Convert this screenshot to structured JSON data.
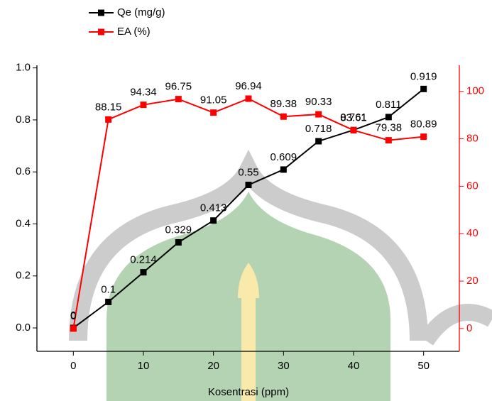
{
  "chart_data": {
    "type": "line",
    "x_label": "Kosentrasi (ppm)",
    "x": [
      0,
      5,
      10,
      15,
      20,
      25,
      30,
      35,
      40,
      45,
      50
    ],
    "series": [
      {
        "name": "Qe (mg/g)",
        "color": "#000000",
        "values": [
          0,
          0.1,
          0.214,
          0.329,
          0.413,
          0.55,
          0.609,
          0.718,
          0.761,
          0.811,
          0.919
        ]
      },
      {
        "name": "EA (%)",
        "color": "#ff0000",
        "axis": "y2",
        "values": [
          0,
          88.15,
          94.34,
          96.75,
          91.05,
          96.94,
          89.38,
          90.33,
          83.61,
          79.38,
          80.89
        ]
      }
    ],
    "xlim": [
      -5.2,
      55.1
    ],
    "xticks": [
      0,
      10,
      20,
      30,
      40,
      50
    ],
    "ylim": [
      -0.09,
      1.01
    ],
    "yticks": [
      {
        "value": 0,
        "label": "0.0"
      },
      {
        "value": 0.2,
        "label": "0.2"
      },
      {
        "value": 0.4,
        "label": "0.4"
      },
      {
        "value": 0.6,
        "label": "0.6"
      },
      {
        "value": 0.8,
        "label": "0.8"
      },
      {
        "value": 1,
        "label": "1.0"
      }
    ],
    "y2lim": [
      -9.6,
      111
    ],
    "y2ticks": [
      0,
      20,
      40,
      60,
      80,
      100
    ]
  }
}
